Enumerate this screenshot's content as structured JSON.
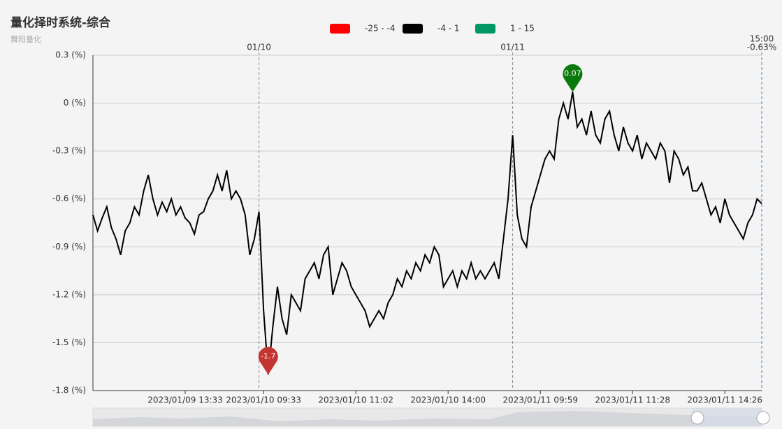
{
  "chart_data": {
    "type": "line",
    "title": "量化择时系统-综合",
    "subtitle": "舞阳量化",
    "legend": [
      {
        "label": "-25 - -4",
        "color": "#ff0000"
      },
      {
        "label": "-4 - 1",
        "color": "#000000"
      },
      {
        "label": "1 - 15",
        "color": "#009966"
      }
    ],
    "categories": [
      null,
      null,
      null,
      null,
      null,
      null,
      null,
      null,
      null,
      null,
      null,
      null,
      null,
      null,
      null,
      null,
      null,
      null,
      null,
      null,
      "2023/01/09 13:33",
      null,
      null,
      null,
      null,
      null,
      null,
      null,
      null,
      null,
      null,
      null,
      null,
      null,
      null,
      null,
      null,
      "2023/01/10 09:33",
      null,
      null,
      null,
      null,
      null,
      null,
      null,
      null,
      null,
      null,
      null,
      null,
      null,
      null,
      null,
      null,
      null,
      null,
      null,
      "2023/01/10 11:02",
      null,
      null,
      null,
      null,
      null,
      null,
      null,
      null,
      null,
      null,
      null,
      null,
      null,
      null,
      null,
      null,
      null,
      null,
      null,
      "2023/01/10 14:00",
      null,
      null,
      null,
      null,
      null,
      null,
      null,
      null,
      null,
      null,
      null,
      null,
      null,
      null,
      null,
      null,
      null,
      null,
      null,
      "2023/01/11 09:59",
      null,
      null,
      null,
      null,
      null,
      null,
      null,
      null,
      null,
      null,
      null,
      null,
      null,
      null,
      null,
      null,
      null,
      null,
      null,
      "2023/01/11 11:28",
      null,
      null,
      null,
      null,
      null,
      null,
      null,
      null,
      null,
      null,
      null,
      null,
      null,
      null,
      null,
      null,
      null,
      null,
      null,
      "2023/01/11 14:26",
      null,
      null,
      null,
      null,
      null,
      null,
      null,
      null
    ],
    "series": [
      {
        "color": "#000000",
        "values": [
          -0.7,
          -0.8,
          -0.72,
          -0.65,
          -0.78,
          -0.85,
          -0.95,
          -0.8,
          -0.75,
          -0.65,
          -0.7,
          -0.55,
          -0.45,
          -0.6,
          -0.7,
          -0.62,
          -0.68,
          -0.6,
          -0.7,
          -0.65,
          -0.72,
          -0.75,
          -0.82,
          -0.7,
          -0.68,
          -0.6,
          -0.55,
          -0.45,
          -0.55,
          -0.42,
          -0.6,
          -0.55,
          -0.6,
          -0.7,
          -0.95,
          -0.85,
          -0.68,
          -1.3,
          -1.7,
          -1.4,
          -1.15,
          -1.35,
          -1.45,
          -1.2,
          -1.25,
          -1.3,
          -1.1,
          -1.05,
          -1.0,
          -1.1,
          -0.95,
          -0.9,
          -1.2,
          -1.1,
          -1.0,
          -1.05,
          -1.15,
          -1.2,
          -1.25,
          -1.3,
          -1.4,
          -1.35,
          -1.3,
          -1.35,
          -1.25,
          -1.2,
          -1.1,
          -1.15,
          -1.05,
          -1.1,
          -1.0,
          -1.05,
          -0.95,
          -1.0,
          -0.9,
          -0.95,
          -1.15,
          -1.1,
          -1.05,
          -1.15,
          -1.05,
          -1.1,
          -1.0,
          -1.1,
          -1.05,
          -1.1,
          -1.05,
          -1.0,
          -1.1,
          -0.85,
          -0.6,
          -0.2,
          -0.7,
          -0.85,
          -0.9,
          -0.65,
          -0.55,
          -0.45,
          -0.35,
          -0.3,
          -0.35,
          -0.1,
          0.0,
          -0.1,
          0.07,
          -0.15,
          -0.1,
          -0.2,
          -0.05,
          -0.2,
          -0.25,
          -0.1,
          -0.05,
          -0.2,
          -0.3,
          -0.15,
          -0.25,
          -0.3,
          -0.2,
          -0.35,
          -0.25,
          -0.3,
          -0.35,
          -0.25,
          -0.3,
          -0.5,
          -0.3,
          -0.35,
          -0.45,
          -0.4,
          -0.55,
          -0.55,
          -0.5,
          -0.6,
          -0.7,
          -0.65,
          -0.75,
          -0.6,
          -0.7,
          -0.75,
          -0.8,
          -0.85,
          -0.75,
          -0.7,
          -0.6,
          -0.63
        ]
      }
    ],
    "ylim": [
      -1.8,
      0.3
    ],
    "yticks": [
      {
        "value": 0.3,
        "label": "0.3 (%)"
      },
      {
        "value": 0,
        "label": "0 (%)"
      },
      {
        "value": -0.3,
        "label": "-0.3 (%)"
      },
      {
        "value": -0.6,
        "label": "-0.6 (%)"
      },
      {
        "value": -0.9,
        "label": "-0.9 (%)"
      },
      {
        "value": -1.2,
        "label": "-1.2 (%)"
      },
      {
        "value": -1.5,
        "label": "-1.5 (%)"
      },
      {
        "value": -1.8,
        "label": "-1.8 (%)"
      }
    ],
    "grid": true,
    "day_lines": [
      {
        "label": "01/10",
        "index": 36
      },
      {
        "label": "01/11",
        "index": 91
      }
    ],
    "mark_points": [
      {
        "value": -1.7,
        "index": 38,
        "color": "#c23531"
      },
      {
        "value": 0.07,
        "index": 104,
        "color": "#0a7a0a"
      }
    ],
    "end_label": {
      "time": "15:00",
      "value": -0.63,
      "label": "-0.63%",
      "color": "#2f89cf"
    }
  }
}
